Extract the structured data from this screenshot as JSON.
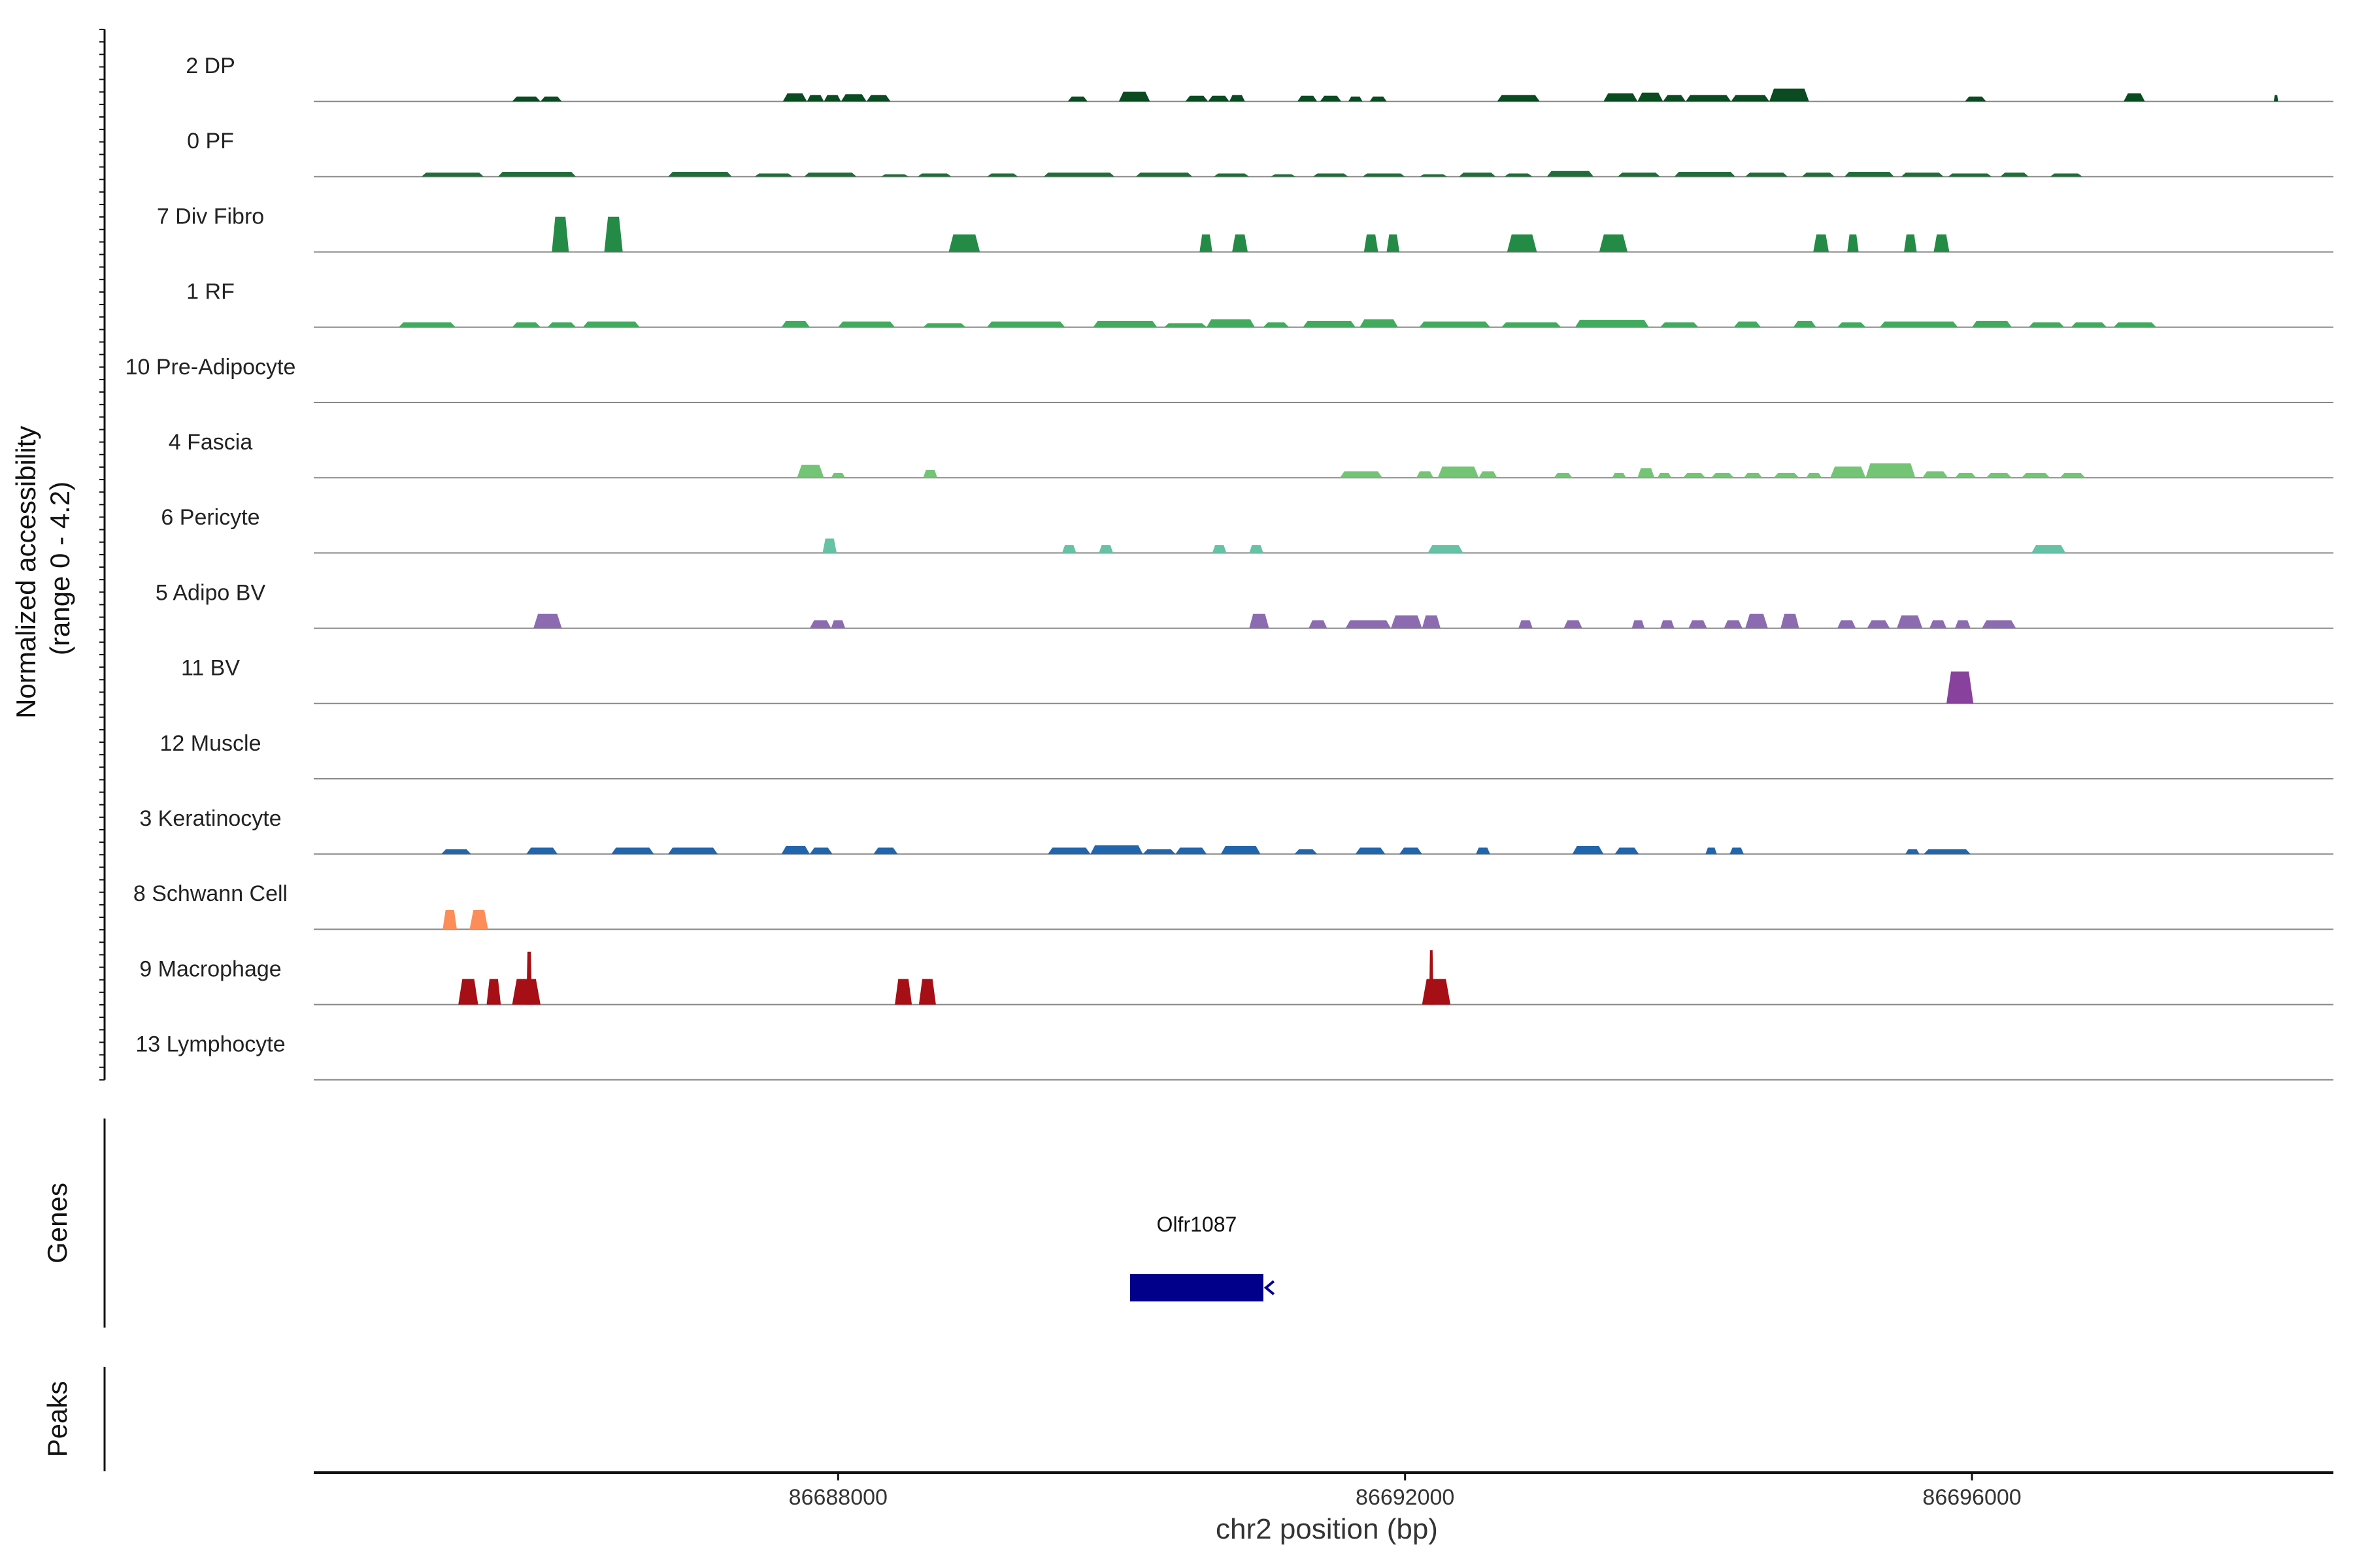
{
  "chart_data": {
    "type": "area",
    "ylabel": "Normalized accessibility\n(range 0 - 4.2)",
    "y_range": [
      0,
      4.2
    ],
    "xlabel": "chr2 position (bp)",
    "xlim": [
      86684300,
      86698550
    ],
    "x_ticks": [
      86688000,
      86692000,
      86696000
    ],
    "x_tick_labels": [
      "86688000",
      "86692000",
      "86696000"
    ],
    "tracks": [
      {
        "name": "2 DP",
        "color": "#0a4b22",
        "peaks": [
          [
            86685700,
            86685900,
            0.3
          ],
          [
            86685900,
            86686050,
            0.3
          ],
          [
            86687610,
            86687780,
            0.5
          ],
          [
            86687780,
            86687900,
            0.4
          ],
          [
            86687900,
            86688020,
            0.4
          ],
          [
            86688020,
            86688200,
            0.45
          ],
          [
            86688200,
            86688370,
            0.4
          ],
          [
            86689620,
            86689760,
            0.3
          ],
          [
            86689980,
            86690200,
            0.6
          ],
          [
            86690450,
            86690610,
            0.35
          ],
          [
            86690610,
            86690760,
            0.35
          ],
          [
            86690760,
            86690870,
            0.4
          ],
          [
            86691240,
            86691380,
            0.35
          ],
          [
            86691400,
            86691550,
            0.35
          ],
          [
            86691600,
            86691700,
            0.3
          ],
          [
            86691750,
            86691870,
            0.3
          ],
          [
            86692650,
            86692950,
            0.4
          ],
          [
            86693400,
            86693640,
            0.5
          ],
          [
            86693640,
            86693820,
            0.55
          ],
          [
            86693820,
            86693980,
            0.4
          ],
          [
            86693980,
            86694300,
            0.4
          ],
          [
            86694300,
            86694570,
            0.4
          ],
          [
            86694570,
            86694850,
            0.8
          ],
          [
            86695950,
            86696100,
            0.3
          ],
          [
            86697070,
            86697220,
            0.5
          ],
          [
            86698130,
            86698160,
            0.4
          ]
        ]
      },
      {
        "name": "0 PF",
        "color": "#1f6e3a",
        "peaks": [
          [
            86685060,
            86685500,
            0.25
          ],
          [
            86685600,
            86686150,
            0.3
          ],
          [
            86686800,
            86687250,
            0.3
          ],
          [
            86687410,
            86687680,
            0.2
          ],
          [
            86687760,
            86688130,
            0.25
          ],
          [
            86688300,
            86688500,
            0.15
          ],
          [
            86688560,
            86688800,
            0.2
          ],
          [
            86689050,
            86689270,
            0.2
          ],
          [
            86689450,
            86689950,
            0.25
          ],
          [
            86690100,
            86690500,
            0.25
          ],
          [
            86690650,
            86690900,
            0.2
          ],
          [
            86691050,
            86691230,
            0.15
          ],
          [
            86691350,
            86691600,
            0.2
          ],
          [
            86691700,
            86692000,
            0.2
          ],
          [
            86692100,
            86692300,
            0.15
          ],
          [
            86692380,
            86692640,
            0.25
          ],
          [
            86692700,
            86692900,
            0.2
          ],
          [
            86693000,
            86693330,
            0.35
          ],
          [
            86693500,
            86693800,
            0.25
          ],
          [
            86693900,
            86694330,
            0.3
          ],
          [
            86694400,
            86694700,
            0.25
          ],
          [
            86694800,
            86695030,
            0.25
          ],
          [
            86695100,
            86695450,
            0.3
          ],
          [
            86695500,
            86695800,
            0.25
          ],
          [
            86695830,
            86696140,
            0.2
          ],
          [
            86696200,
            86696400,
            0.25
          ],
          [
            86696550,
            86696780,
            0.2
          ]
        ]
      },
      {
        "name": "7 Div Fibro",
        "color": "#238b45",
        "peaks": [
          [
            86685980,
            86686100,
            2.2
          ],
          [
            86686350,
            86686480,
            2.2
          ],
          [
            86688780,
            86689000,
            1.1
          ],
          [
            86690550,
            86690640,
            1.1
          ],
          [
            86690780,
            86690890,
            1.1
          ],
          [
            86691710,
            86691810,
            1.1
          ],
          [
            86691870,
            86691960,
            1.1
          ],
          [
            86692720,
            86692930,
            1.1
          ],
          [
            86693370,
            86693570,
            1.1
          ],
          [
            86694880,
            86694990,
            1.1
          ],
          [
            86695120,
            86695200,
            1.1
          ],
          [
            86695520,
            86695610,
            1.1
          ],
          [
            86695730,
            86695840,
            1.1
          ]
        ]
      },
      {
        "name": "1 RF",
        "color": "#41ab5d",
        "peaks": [
          [
            86684900,
            86685300,
            0.3
          ],
          [
            86685700,
            86685900,
            0.3
          ],
          [
            86685950,
            86686150,
            0.3
          ],
          [
            86686200,
            86686600,
            0.35
          ],
          [
            86687600,
            86687800,
            0.4
          ],
          [
            86688000,
            86688400,
            0.35
          ],
          [
            86688600,
            86688900,
            0.25
          ],
          [
            86689050,
            86689600,
            0.35
          ],
          [
            86689800,
            86690250,
            0.4
          ],
          [
            86690300,
            86690600,
            0.25
          ],
          [
            86690600,
            86690940,
            0.5
          ],
          [
            86691000,
            86691180,
            0.3
          ],
          [
            86691280,
            86691650,
            0.4
          ],
          [
            86691680,
            86691950,
            0.5
          ],
          [
            86692100,
            86692600,
            0.35
          ],
          [
            86692680,
            86693100,
            0.3
          ],
          [
            86693200,
            86693720,
            0.45
          ],
          [
            86693800,
            86694070,
            0.3
          ],
          [
            86694320,
            86694510,
            0.35
          ],
          [
            86694740,
            86694900,
            0.4
          ],
          [
            86695050,
            86695250,
            0.3
          ],
          [
            86695350,
            86695900,
            0.35
          ],
          [
            86696000,
            86696280,
            0.4
          ],
          [
            86696400,
            86696650,
            0.3
          ],
          [
            86696700,
            86696950,
            0.3
          ],
          [
            86697000,
            86697300,
            0.3
          ]
        ]
      },
      {
        "name": "10 Pre-Adipocyte",
        "color": "#74c476",
        "peaks": []
      },
      {
        "name": "4 Fascia",
        "color": "#74c476",
        "peaks": [
          [
            86687710,
            86687900,
            0.8
          ],
          [
            86687950,
            86688050,
            0.3
          ],
          [
            86688600,
            86688700,
            0.5
          ],
          [
            86691540,
            86691840,
            0.4
          ],
          [
            86692080,
            86692200,
            0.4
          ],
          [
            86692230,
            86692520,
            0.7
          ],
          [
            86692520,
            86692650,
            0.4
          ],
          [
            86693050,
            86693180,
            0.3
          ],
          [
            86693460,
            86693560,
            0.3
          ],
          [
            86693640,
            86693760,
            0.6
          ],
          [
            86693780,
            86693880,
            0.3
          ],
          [
            86693960,
            86694120,
            0.3
          ],
          [
            86694160,
            86694320,
            0.3
          ],
          [
            86694390,
            86694520,
            0.3
          ],
          [
            86694600,
            86694780,
            0.3
          ],
          [
            86694830,
            86694940,
            0.3
          ],
          [
            86695000,
            86695250,
            0.7
          ],
          [
            86695250,
            86695600,
            0.9
          ],
          [
            86695650,
            86695830,
            0.4
          ],
          [
            86695880,
            86696030,
            0.3
          ],
          [
            86696100,
            86696280,
            0.3
          ],
          [
            86696350,
            86696550,
            0.3
          ],
          [
            86696620,
            86696800,
            0.3
          ]
        ]
      },
      {
        "name": "6 Pericyte",
        "color": "#66c2a4",
        "peaks": [
          [
            86687890,
            86687990,
            0.9
          ],
          [
            86689580,
            86689680,
            0.5
          ],
          [
            86689840,
            86689940,
            0.5
          ],
          [
            86690640,
            86690740,
            0.5
          ],
          [
            86690900,
            86691000,
            0.5
          ],
          [
            86692160,
            86692410,
            0.5
          ],
          [
            86696420,
            86696660,
            0.5
          ]
        ]
      },
      {
        "name": "5 Adipo BV",
        "color": "#8c6bb1",
        "peaks": [
          [
            86685850,
            86686050,
            0.9
          ],
          [
            86687800,
            86687950,
            0.5
          ],
          [
            86687950,
            86688050,
            0.5
          ],
          [
            86690900,
            86691040,
            0.9
          ],
          [
            86691320,
            86691450,
            0.5
          ],
          [
            86691580,
            86691900,
            0.5
          ],
          [
            86691900,
            86692120,
            0.8
          ],
          [
            86692120,
            86692250,
            0.8
          ],
          [
            86692800,
            86692900,
            0.5
          ],
          [
            86693120,
            86693250,
            0.5
          ],
          [
            86693600,
            86693690,
            0.5
          ],
          [
            86693800,
            86693900,
            0.5
          ],
          [
            86694000,
            86694130,
            0.5
          ],
          [
            86694250,
            86694380,
            0.5
          ],
          [
            86694400,
            86694560,
            0.9
          ],
          [
            86694650,
            86694780,
            0.9
          ],
          [
            86695050,
            86695180,
            0.5
          ],
          [
            86695260,
            86695420,
            0.5
          ],
          [
            86695470,
            86695650,
            0.8
          ],
          [
            86695700,
            86695820,
            0.5
          ],
          [
            86695880,
            86695990,
            0.5
          ],
          [
            86696070,
            86696310,
            0.5
          ]
        ]
      },
      {
        "name": "11 BV",
        "color": "#88419d",
        "peaks": [
          [
            86695820,
            86696010,
            2.0
          ]
        ]
      },
      {
        "name": "12 Muscle",
        "color": "#7a0177",
        "peaks": []
      },
      {
        "name": "3 Keratinocyte",
        "color": "#2166ac",
        "peaks": [
          [
            86685200,
            86685410,
            0.3
          ],
          [
            86685800,
            86686020,
            0.4
          ],
          [
            86686400,
            86686700,
            0.4
          ],
          [
            86686800,
            86687150,
            0.4
          ],
          [
            86687600,
            86687800,
            0.5
          ],
          [
            86687800,
            86687960,
            0.4
          ],
          [
            86688250,
            86688420,
            0.4
          ],
          [
            86689480,
            86689780,
            0.4
          ],
          [
            86689780,
            86690150,
            0.55
          ],
          [
            86690150,
            86690380,
            0.3
          ],
          [
            86690380,
            86690600,
            0.4
          ],
          [
            86690700,
            86690980,
            0.5
          ],
          [
            86691220,
            86691380,
            0.3
          ],
          [
            86691650,
            86691860,
            0.4
          ],
          [
            86691960,
            86692120,
            0.4
          ],
          [
            86692500,
            86692600,
            0.4
          ],
          [
            86693180,
            86693400,
            0.5
          ],
          [
            86693480,
            86693650,
            0.4
          ],
          [
            86694120,
            86694200,
            0.4
          ],
          [
            86694290,
            86694390,
            0.4
          ],
          [
            86695530,
            86695630,
            0.3
          ],
          [
            86695660,
            86695990,
            0.3
          ]
        ]
      },
      {
        "name": "8 Schwann Cell",
        "color": "#fc8d59",
        "peaks": [
          [
            86685210,
            86685310,
            1.2
          ],
          [
            86685400,
            86685530,
            1.2
          ]
        ]
      },
      {
        "name": "9 Macrophage",
        "color": "#a50f15",
        "peaks": [
          [
            86685320,
            86685460,
            1.6
          ],
          [
            86685520,
            86685620,
            1.6
          ],
          [
            86685700,
            86685900,
            1.6
          ],
          [
            86685800,
            86685840,
            3.3
          ],
          [
            86688400,
            86688520,
            1.6
          ],
          [
            86688570,
            86688690,
            1.6
          ],
          [
            86692120,
            86692320,
            1.6
          ],
          [
            86692170,
            86692200,
            3.4
          ]
        ]
      },
      {
        "name": "13 Lymphocyte",
        "color": "#000000",
        "peaks": []
      }
    ],
    "genes_track": {
      "label": "Genes",
      "genes": [
        {
          "name": "Olfr1087",
          "start": 86690060,
          "end": 86691000,
          "strand": "-",
          "color": "#00008b"
        }
      ]
    },
    "peaks_track": {
      "label": "Peaks",
      "peaks": []
    }
  }
}
